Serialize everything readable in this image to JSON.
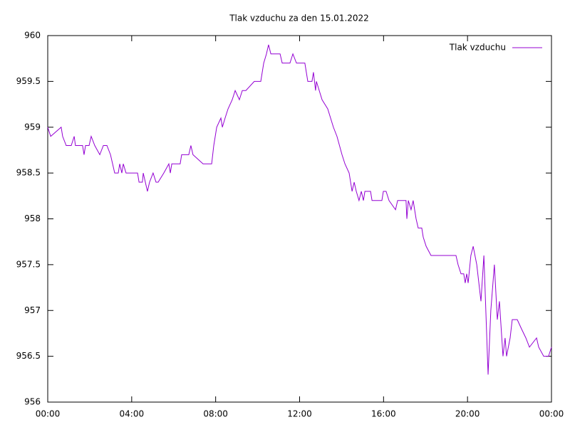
{
  "chart_data": {
    "type": "line",
    "title": "Tlak vzduchu za den 15.01.2022",
    "series": [
      {
        "name": "Tlak vzduchu",
        "color": "#9400d3",
        "x": [
          0,
          0.14,
          0.64,
          0.71,
          0.88,
          1.12,
          1.26,
          1.32,
          1.66,
          1.73,
          1.8,
          1.97,
          2.07,
          2.24,
          2.48,
          2.65,
          2.82,
          2.99,
          3.09,
          3.19,
          3.36,
          3.43,
          3.53,
          3.6,
          3.73,
          4.28,
          4.35,
          4.51,
          4.55,
          4.65,
          4.75,
          4.85,
          5.02,
          5.16,
          5.26,
          5.53,
          5.77,
          5.84,
          5.91,
          6.31,
          6.38,
          6.72,
          6.82,
          6.92,
          7.4,
          7.81,
          7.91,
          8.05,
          8.25,
          8.32,
          8.45,
          8.59,
          8.79,
          8.93,
          9.13,
          9.27,
          9.44,
          9.84,
          10.15,
          10.29,
          10.42,
          10.52,
          10.63,
          11.07,
          11.17,
          11.54,
          11.68,
          11.85,
          12.25,
          12.32,
          12.39,
          12.59,
          12.66,
          12.76,
          12.8,
          13.07,
          13.34,
          13.61,
          13.78,
          14.02,
          14.16,
          14.36,
          14.5,
          14.6,
          14.7,
          14.83,
          14.94,
          15.04,
          15.11,
          15.38,
          15.45,
          15.92,
          15.99,
          16.12,
          16.26,
          16.57,
          16.67,
          17.07,
          17.11,
          17.18,
          17.31,
          17.41,
          17.55,
          17.65,
          17.82,
          17.89,
          18.03,
          18.26,
          19.45,
          19.55,
          19.69,
          19.82,
          19.89,
          19.96,
          20.03,
          20.16,
          20.27,
          20.44,
          20.64,
          20.78,
          20.98,
          21.11,
          21.28,
          21.42,
          21.52,
          21.69,
          21.79,
          21.86,
          22.03,
          22.13,
          22.37,
          22.57,
          22.78,
          22.95,
          23.29,
          23.39,
          23.63,
          23.86,
          24
        ],
        "values": [
          959,
          958.9,
          959,
          958.9,
          958.8,
          958.8,
          958.9,
          958.8,
          958.8,
          958.7,
          958.8,
          958.8,
          958.9,
          958.8,
          958.7,
          958.8,
          958.8,
          958.7,
          958.6,
          958.5,
          958.5,
          958.6,
          958.5,
          958.6,
          958.5,
          958.5,
          958.4,
          958.4,
          958.5,
          958.4,
          958.3,
          958.4,
          958.5,
          958.4,
          958.4,
          958.5,
          958.6,
          958.5,
          958.6,
          958.6,
          958.7,
          958.7,
          958.8,
          958.7,
          958.6,
          958.6,
          958.8,
          959,
          959.1,
          959,
          959.1,
          959.2,
          959.3,
          959.4,
          959.3,
          959.4,
          959.4,
          959.5,
          959.5,
          959.7,
          959.8,
          959.9,
          959.8,
          959.8,
          959.7,
          959.7,
          959.8,
          959.7,
          959.7,
          959.6,
          959.5,
          959.5,
          959.6,
          959.4,
          959.5,
          959.3,
          959.2,
          959,
          958.9,
          958.7,
          958.6,
          958.5,
          958.3,
          958.4,
          958.3,
          958.2,
          958.3,
          958.2,
          958.3,
          958.3,
          958.2,
          958.2,
          958.3,
          958.3,
          958.2,
          958.1,
          958.2,
          958.2,
          958,
          958.2,
          958.1,
          958.2,
          958,
          957.9,
          957.9,
          957.8,
          957.7,
          957.6,
          957.6,
          957.5,
          957.4,
          957.4,
          957.3,
          957.4,
          957.3,
          957.6,
          957.7,
          957.5,
          957.1,
          957.6,
          956.3,
          957,
          957.5,
          956.9,
          957.1,
          956.5,
          956.7,
          956.5,
          956.7,
          956.9,
          956.9,
          956.8,
          956.7,
          956.6,
          956.7,
          956.6,
          956.5,
          956.5,
          956.6
        ]
      }
    ],
    "xlim": [
      0,
      24
    ],
    "xticks": [
      {
        "value": 0,
        "label": "00:00"
      },
      {
        "value": 4,
        "label": "04:00"
      },
      {
        "value": 8,
        "label": "08:00"
      },
      {
        "value": 12,
        "label": "12:00"
      },
      {
        "value": 16,
        "label": "16:00"
      },
      {
        "value": 20,
        "label": "20:00"
      },
      {
        "value": 24,
        "label": "00:00"
      }
    ],
    "ylim": [
      956,
      960
    ],
    "yticks": [
      956,
      956.5,
      957,
      957.5,
      958,
      958.5,
      959,
      959.5,
      960
    ],
    "grid": false,
    "legend": "top-right"
  }
}
